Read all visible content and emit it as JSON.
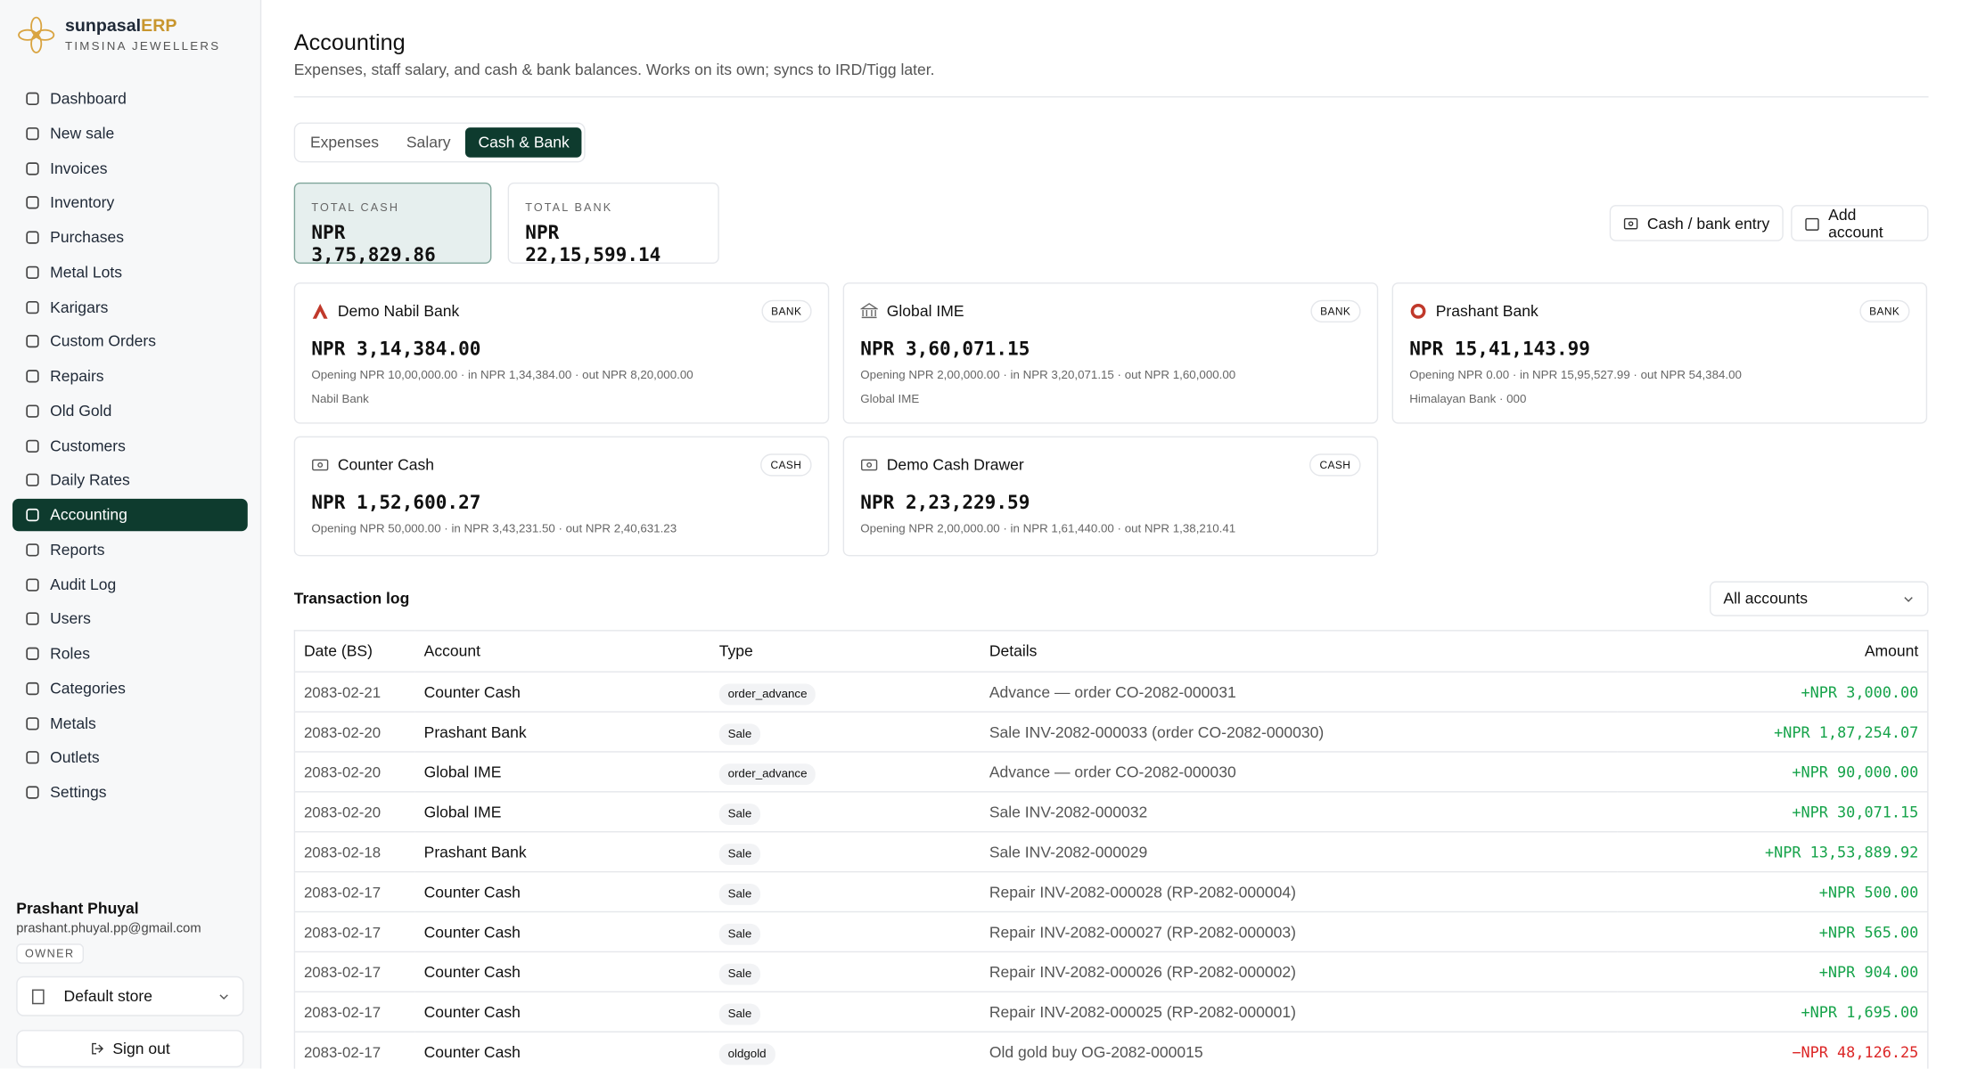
{
  "brand": {
    "name": "sunpasal",
    "suffix": "ERP",
    "subtitle": "TIMSINA JEWELLERS"
  },
  "nav": [
    {
      "label": "Dashboard"
    },
    {
      "label": "New sale"
    },
    {
      "label": "Invoices"
    },
    {
      "label": "Inventory"
    },
    {
      "label": "Purchases"
    },
    {
      "label": "Metal Lots"
    },
    {
      "label": "Karigars"
    },
    {
      "label": "Custom Orders"
    },
    {
      "label": "Repairs"
    },
    {
      "label": "Old Gold"
    },
    {
      "label": "Customers"
    },
    {
      "label": "Daily Rates"
    },
    {
      "label": "Accounting",
      "active": true
    },
    {
      "label": "Reports"
    },
    {
      "label": "Audit Log"
    },
    {
      "label": "Users"
    },
    {
      "label": "Roles"
    },
    {
      "label": "Categories"
    },
    {
      "label": "Metals"
    },
    {
      "label": "Outlets"
    },
    {
      "label": "Settings"
    }
  ],
  "user": {
    "name": "Prashant Phuyal",
    "email": "prashant.phuyal.pp@gmail.com",
    "role": "OWNER",
    "store": "Default store",
    "signout": "Sign out"
  },
  "header": {
    "title": "Accounting",
    "subtitle": "Expenses, staff salary, and cash & bank balances. Works on its own; syncs to IRD/Tigg later."
  },
  "tabs": [
    {
      "label": "Expenses"
    },
    {
      "label": "Salary"
    },
    {
      "label": "Cash & Bank",
      "active": true
    }
  ],
  "totals": [
    {
      "label": "TOTAL CASH",
      "value": "NPR 3,75,829.86"
    },
    {
      "label": "TOTAL BANK",
      "value": "NPR 22,15,599.14"
    }
  ],
  "actions": [
    "Cash / bank entry",
    "Add account"
  ],
  "accounts": [
    {
      "name": "Demo Nabil Bank",
      "badge": "BANK",
      "balance": "NPR 3,14,384.00",
      "detail": "Opening NPR 10,00,000.00 · in NPR 1,34,384.00 · out NPR 8,20,000.00",
      "sub": "Nabil Bank"
    },
    {
      "name": "Global IME",
      "badge": "BANK",
      "balance": "NPR 3,60,071.15",
      "detail": "Opening NPR 2,00,000.00 · in NPR 3,20,071.15 · out NPR 1,60,000.00",
      "sub": "Global IME"
    },
    {
      "name": "Prashant Bank",
      "badge": "BANK",
      "balance": "NPR 15,41,143.99",
      "detail": "Opening NPR 0.00 · in NPR 15,95,527.99 · out NPR 54,384.00",
      "sub": "Himalayan Bank · 000"
    },
    {
      "name": "Counter Cash",
      "badge": "CASH",
      "balance": "NPR 1,52,600.27",
      "detail": "Opening NPR 50,000.00 · in NPR 3,43,231.50 · out NPR 2,40,631.23"
    },
    {
      "name": "Demo Cash Drawer",
      "badge": "CASH",
      "balance": "NPR 2,23,229.59",
      "detail": "Opening NPR 2,00,000.00 · in NPR 1,61,440.00 · out NPR 1,38,210.41"
    }
  ],
  "log": {
    "title": "Transaction log",
    "filter": "All accounts",
    "columns": [
      "Date (BS)",
      "Account",
      "Type",
      "Details",
      "Amount"
    ],
    "rows": [
      [
        "2083-02-21",
        "Counter Cash",
        "order_advance",
        "Advance — order CO-2082-000031",
        "+NPR 3,000.00"
      ],
      [
        "2083-02-20",
        "Prashant Bank",
        "Sale",
        "Sale INV-2082-000033 (order CO-2082-000030)",
        "+NPR 1,87,254.07"
      ],
      [
        "2083-02-20",
        "Global IME",
        "order_advance",
        "Advance — order CO-2082-000030",
        "+NPR 90,000.00"
      ],
      [
        "2083-02-20",
        "Global IME",
        "Sale",
        "Sale INV-2082-000032",
        "+NPR 30,071.15"
      ],
      [
        "2083-02-18",
        "Prashant Bank",
        "Sale",
        "Sale INV-2082-000029",
        "+NPR 13,53,889.92"
      ],
      [
        "2083-02-17",
        "Counter Cash",
        "Sale",
        "Repair INV-2082-000028 (RP-2082-000004)",
        "+NPR 500.00"
      ],
      [
        "2083-02-17",
        "Counter Cash",
        "Sale",
        "Repair INV-2082-000027 (RP-2082-000003)",
        "+NPR 565.00"
      ],
      [
        "2083-02-17",
        "Counter Cash",
        "Sale",
        "Repair INV-2082-000026 (RP-2082-000002)",
        "+NPR 904.00"
      ],
      [
        "2083-02-17",
        "Counter Cash",
        "Sale",
        "Repair INV-2082-000025 (RP-2082-000001)",
        "+NPR 1,695.00"
      ],
      [
        "2083-02-17",
        "Counter Cash",
        "oldgold",
        "Old gold buy OG-2082-000015",
        "−NPR 48,126.25"
      ]
    ]
  }
}
